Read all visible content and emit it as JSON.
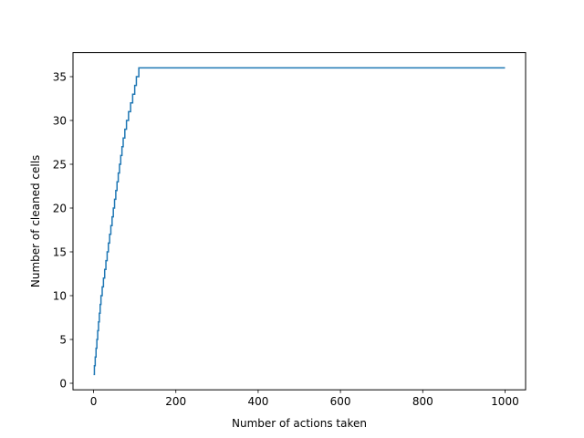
{
  "chart_data": {
    "type": "line",
    "title": "",
    "xlabel": "Number of actions taken",
    "ylabel": "Number of cleaned cells",
    "xlim": [
      -50,
      1050
    ],
    "ylim": [
      -0.75,
      37.75
    ],
    "xticks": [
      0,
      200,
      400,
      600,
      800,
      1000
    ],
    "yticks": [
      0,
      5,
      10,
      15,
      20,
      25,
      30,
      35
    ],
    "grid": false,
    "legend": "none",
    "series": [
      {
        "color": "#1f77b4",
        "points": [
          [
            0,
            1
          ],
          [
            2,
            2
          ],
          [
            4,
            3
          ],
          [
            6,
            4
          ],
          [
            8,
            5
          ],
          [
            10,
            6
          ],
          [
            12,
            7
          ],
          [
            14,
            8
          ],
          [
            16,
            9
          ],
          [
            18,
            10
          ],
          [
            21,
            11
          ],
          [
            24,
            12
          ],
          [
            27,
            13
          ],
          [
            30,
            14
          ],
          [
            33,
            15
          ],
          [
            36,
            16
          ],
          [
            39,
            17
          ],
          [
            42,
            18
          ],
          [
            45,
            19
          ],
          [
            48,
            20
          ],
          [
            51,
            21
          ],
          [
            54,
            22
          ],
          [
            57,
            23
          ],
          [
            60,
            24
          ],
          [
            63,
            25
          ],
          [
            66,
            26
          ],
          [
            69,
            27
          ],
          [
            72,
            28
          ],
          [
            76,
            29
          ],
          [
            80,
            30
          ],
          [
            85,
            31
          ],
          [
            90,
            32
          ],
          [
            95,
            33
          ],
          [
            100,
            34
          ],
          [
            104,
            35
          ],
          [
            110,
            36
          ],
          [
            1000,
            36
          ]
        ]
      }
    ]
  }
}
